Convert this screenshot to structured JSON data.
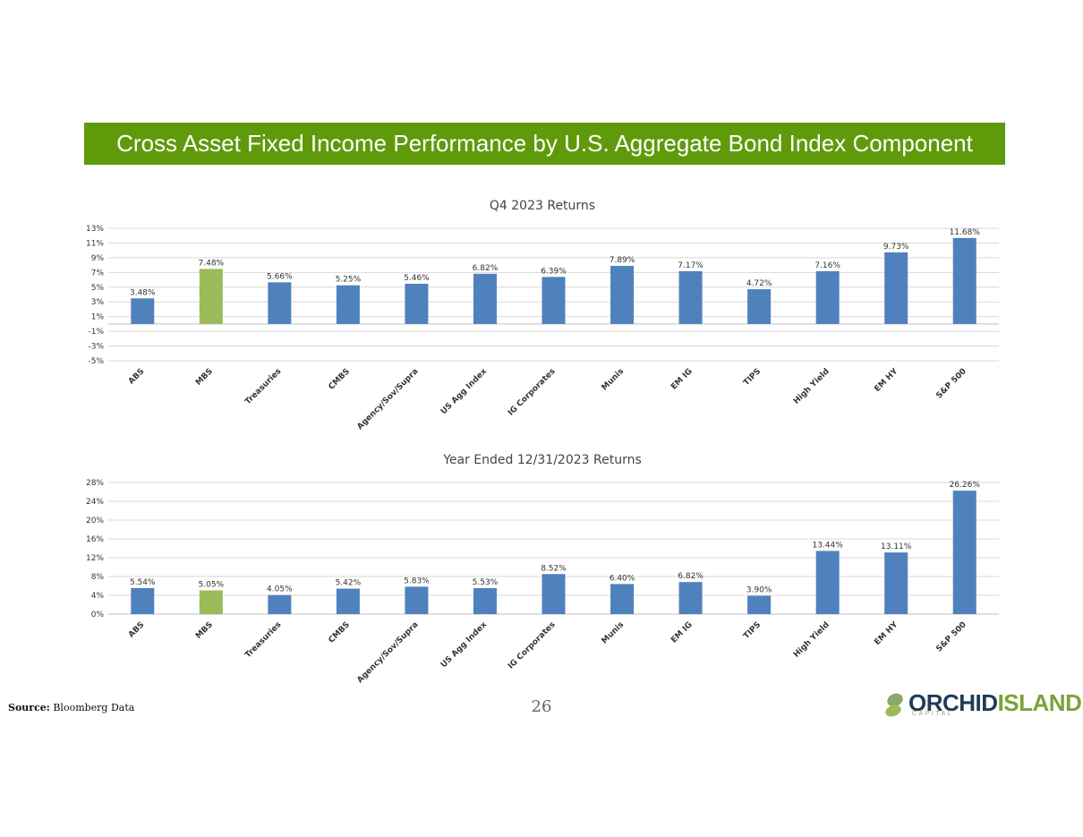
{
  "page": {
    "title": "Cross Asset Fixed Income Performance by U.S. Aggregate Bond Index Component",
    "source_label": "Source:",
    "source_text": "Bloomberg Data",
    "page_number": "26"
  },
  "logo": {
    "word1": "ORCHID",
    "word2": "ISLAND",
    "sub": "CAPITAL"
  },
  "colors": {
    "banner": "#5f9a0b",
    "bar": "#4f81bd",
    "highlight": "#9bbb59",
    "grid": "#d9d9d9"
  },
  "chart_data": [
    {
      "type": "bar",
      "title": "Q4 2023 Returns",
      "categories": [
        "ABS",
        "MBS",
        "Treasuries",
        "CMBS",
        "Agency/Sov/Supra",
        "US Agg Index",
        "IG Corporates",
        "Munis",
        "EM IG",
        "TIPS",
        "High Yield",
        "EM HY",
        "S&P 500"
      ],
      "values": [
        3.48,
        7.48,
        5.66,
        5.25,
        5.46,
        6.82,
        6.39,
        7.89,
        7.17,
        4.72,
        7.16,
        9.73,
        11.68
      ],
      "labels": [
        "3.48%",
        "7.48%",
        "5.66%",
        "5.25%",
        "5.46%",
        "6.82%",
        "6.39%",
        "7.89%",
        "7.17%",
        "4.72%",
        "7.16%",
        "9.73%",
        "11.68%"
      ],
      "highlight_index": 1,
      "ylim": [
        -5,
        13
      ],
      "yticks": [
        13,
        11,
        9,
        7,
        5,
        3,
        1,
        -1,
        -3,
        -5
      ],
      "ytick_labels": [
        "13%",
        "11%",
        "9%",
        "7%",
        "5%",
        "3%",
        "1%",
        "-1%",
        "-3%",
        "-5%"
      ],
      "xlabel": "",
      "ylabel": "",
      "grid": true
    },
    {
      "type": "bar",
      "title": "Year Ended 12/31/2023 Returns",
      "categories": [
        "ABS",
        "MBS",
        "Treasuries",
        "CMBS",
        "Agency/Sov/Supra",
        "US Agg Index",
        "IG Corporates",
        "Munis",
        "EM IG",
        "TIPS",
        "High Yield",
        "EM HY",
        "S&P 500"
      ],
      "values": [
        5.54,
        5.05,
        4.05,
        5.42,
        5.83,
        5.53,
        8.52,
        6.4,
        6.82,
        3.9,
        13.44,
        13.11,
        26.26
      ],
      "labels": [
        "5.54%",
        "5.05%",
        "4.05%",
        "5.42%",
        "5.83%",
        "5.53%",
        "8.52%",
        "6.40%",
        "6.82%",
        "3.90%",
        "13.44%",
        "13.11%",
        "26.26%"
      ],
      "highlight_index": 1,
      "ylim": [
        0,
        28
      ],
      "yticks": [
        28,
        24,
        20,
        16,
        12,
        8,
        4,
        0
      ],
      "ytick_labels": [
        "28%",
        "24%",
        "20%",
        "16%",
        "12%",
        "8%",
        "4%",
        "0%"
      ],
      "xlabel": "",
      "ylabel": "",
      "grid": true
    }
  ]
}
